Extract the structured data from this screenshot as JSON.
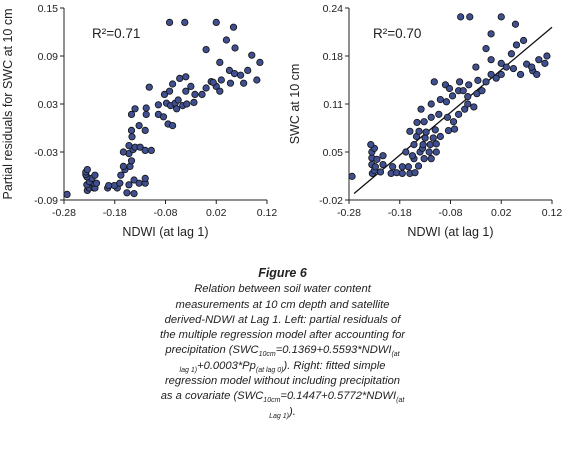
{
  "chart_data": [
    {
      "type": "scatter",
      "xlabel": "NDWI (at lag 1)",
      "ylabel": "Partial residuals for SWC at 10 cm",
      "annotation": "R²=0.71",
      "xlim": [
        -0.28,
        0.12
      ],
      "ylim": [
        -0.09,
        0.15
      ],
      "x_ticks": [
        "-0.28",
        "-0.18",
        "-0.08",
        "0.02",
        "0.12"
      ],
      "y_ticks": [
        "-0.09",
        "-0.03",
        "0.03",
        "0.09",
        "0.15"
      ],
      "grid": false,
      "fit_line": null,
      "points": [
        [
          -0.274,
          -0.083
        ],
        [
          -0.234,
          -0.078
        ],
        [
          -0.23,
          -0.075
        ],
        [
          -0.221,
          -0.075
        ],
        [
          -0.219,
          -0.075
        ],
        [
          -0.235,
          -0.071
        ],
        [
          -0.221,
          -0.069
        ],
        [
          -0.216,
          -0.069
        ],
        [
          -0.23,
          -0.067
        ],
        [
          -0.225,
          -0.063
        ],
        [
          -0.235,
          -0.061
        ],
        [
          -0.237,
          -0.058
        ],
        [
          -0.219,
          -0.059
        ],
        [
          -0.237,
          -0.055
        ],
        [
          -0.234,
          -0.052
        ],
        [
          -0.194,
          -0.075
        ],
        [
          -0.175,
          -0.075
        ],
        [
          -0.181,
          -0.072
        ],
        [
          -0.156,
          -0.081
        ],
        [
          -0.142,
          -0.082
        ],
        [
          -0.192,
          -0.072
        ],
        [
          -0.17,
          -0.069
        ],
        [
          -0.152,
          -0.071
        ],
        [
          -0.132,
          -0.069
        ],
        [
          -0.12,
          -0.069
        ],
        [
          -0.168,
          -0.059
        ],
        [
          -0.142,
          -0.065
        ],
        [
          -0.12,
          -0.063
        ],
        [
          -0.16,
          -0.052
        ],
        [
          -0.163,
          -0.048
        ],
        [
          -0.15,
          -0.048
        ],
        [
          -0.147,
          -0.041
        ],
        [
          -0.152,
          -0.032
        ],
        [
          -0.144,
          -0.027
        ],
        [
          -0.152,
          -0.022
        ],
        [
          -0.14,
          -0.024
        ],
        [
          -0.163,
          -0.03
        ],
        [
          -0.13,
          -0.024
        ],
        [
          -0.12,
          -0.028
        ],
        [
          -0.108,
          -0.028
        ],
        [
          -0.146,
          -0.011
        ],
        [
          -0.147,
          -0.003
        ],
        [
          -0.12,
          -0.003
        ],
        [
          -0.132,
          0.003
        ],
        [
          -0.147,
          0.017
        ],
        [
          -0.118,
          0.017
        ],
        [
          -0.094,
          0.017
        ],
        [
          -0.084,
          0.014
        ],
        [
          -0.075,
          0.005
        ],
        [
          -0.066,
          0.003
        ],
        [
          -0.14,
          0.024
        ],
        [
          -0.118,
          0.025
        ],
        [
          -0.094,
          0.029
        ],
        [
          -0.078,
          0.031
        ],
        [
          -0.07,
          0.028
        ],
        [
          -0.061,
          0.031
        ],
        [
          -0.058,
          0.024
        ],
        [
          -0.046,
          0.028
        ],
        [
          -0.038,
          0.03
        ],
        [
          -0.024,
          0.032
        ],
        [
          -0.112,
          0.051
        ],
        [
          -0.082,
          0.042
        ],
        [
          -0.072,
          0.046
        ],
        [
          -0.055,
          0.035
        ],
        [
          -0.04,
          0.046
        ],
        [
          -0.022,
          0.042
        ],
        [
          -0.008,
          0.042
        ],
        [
          -0.066,
          0.055
        ],
        [
          -0.052,
          0.062
        ],
        [
          -0.04,
          0.064
        ],
        [
          -0.03,
          0.052
        ],
        [
          0.0,
          0.05
        ],
        [
          0.01,
          0.058
        ],
        [
          0.02,
          0.052
        ],
        [
          0.027,
          0.046
        ],
        [
          0.03,
          0.06
        ],
        [
          0.046,
          0.072
        ],
        [
          0.056,
          0.068
        ],
        [
          0.068,
          0.066
        ],
        [
          0.082,
          0.072
        ],
        [
          0.106,
          0.082
        ],
        [
          0.074,
          0.056
        ],
        [
          0.048,
          0.056
        ],
        [
          0.014,
          0.057
        ],
        [
          0.027,
          0.082
        ],
        [
          0.04,
          0.11
        ],
        [
          0.054,
          0.126
        ],
        [
          0.057,
          0.1
        ],
        [
          0.09,
          0.091
        ],
        [
          0.1,
          0.06
        ],
        [
          -0.072,
          0.132
        ],
        [
          -0.042,
          0.132
        ],
        [
          0.02,
          0.132
        ],
        [
          0.0,
          0.098
        ]
      ]
    },
    {
      "type": "scatter",
      "xlabel": "NDWI (at lag 1)",
      "ylabel": "SWC at 10 cm",
      "annotation": "R²=0.70",
      "xlim": [
        -0.28,
        0.12
      ],
      "ylim": [
        -0.02,
        0.24
      ],
      "x_ticks": [
        "-0.28",
        "-0.18",
        "-0.08",
        "0.02",
        "0.12"
      ],
      "y_ticks": [
        "-0.02",
        "0.05",
        "0.11",
        "0.18",
        "0.24"
      ],
      "grid": false,
      "fit_line": {
        "intercept": 0.1447,
        "slope": 0.5772,
        "x_start": -0.27,
        "x_end": 0.12
      },
      "points": [
        [
          -0.274,
          0.012
        ],
        [
          -0.234,
          0.016
        ],
        [
          -0.23,
          0.02
        ],
        [
          -0.218,
          0.018
        ],
        [
          -0.235,
          0.028
        ],
        [
          -0.228,
          0.025
        ],
        [
          -0.213,
          0.028
        ],
        [
          -0.235,
          0.037
        ],
        [
          -0.225,
          0.035
        ],
        [
          -0.213,
          0.04
        ],
        [
          -0.235,
          0.045
        ],
        [
          -0.23,
          0.05
        ],
        [
          -0.237,
          0.055
        ],
        [
          -0.197,
          0.016
        ],
        [
          -0.186,
          0.017
        ],
        [
          -0.175,
          0.016
        ],
        [
          -0.16,
          0.016
        ],
        [
          -0.15,
          0.017
        ],
        [
          -0.194,
          0.025
        ],
        [
          -0.175,
          0.025
        ],
        [
          -0.163,
          0.025
        ],
        [
          -0.143,
          0.026
        ],
        [
          -0.152,
          0.036
        ],
        [
          -0.132,
          0.036
        ],
        [
          -0.118,
          0.036
        ],
        [
          -0.168,
          0.045
        ],
        [
          -0.155,
          0.04
        ],
        [
          -0.14,
          0.045
        ],
        [
          -0.135,
          0.05
        ],
        [
          -0.122,
          0.045
        ],
        [
          -0.108,
          0.045
        ],
        [
          -0.152,
          0.055
        ],
        [
          -0.134,
          0.055
        ],
        [
          -0.12,
          0.055
        ],
        [
          -0.108,
          0.056
        ],
        [
          -0.147,
          0.066
        ],
        [
          -0.13,
          0.064
        ],
        [
          -0.114,
          0.064
        ],
        [
          -0.1,
          0.066
        ],
        [
          -0.16,
          0.073
        ],
        [
          -0.142,
          0.073
        ],
        [
          -0.128,
          0.072
        ],
        [
          -0.11,
          0.075
        ],
        [
          -0.084,
          0.074
        ],
        [
          -0.072,
          0.076
        ],
        [
          -0.146,
          0.085
        ],
        [
          -0.132,
          0.086
        ],
        [
          -0.118,
          0.092
        ],
        [
          -0.103,
          0.096
        ],
        [
          -0.086,
          0.092
        ],
        [
          -0.074,
          0.086
        ],
        [
          -0.064,
          0.096
        ],
        [
          -0.052,
          0.103
        ],
        [
          -0.046,
          0.11
        ],
        [
          -0.034,
          0.106
        ],
        [
          -0.138,
          0.103
        ],
        [
          -0.118,
          0.11
        ],
        [
          -0.1,
          0.116
        ],
        [
          -0.088,
          0.113
        ],
        [
          -0.076,
          0.121
        ],
        [
          -0.064,
          0.128
        ],
        [
          -0.055,
          0.128
        ],
        [
          -0.046,
          0.12
        ],
        [
          -0.028,
          0.124
        ],
        [
          -0.018,
          0.128
        ],
        [
          -0.112,
          0.14
        ],
        [
          -0.09,
          0.136
        ],
        [
          -0.082,
          0.131
        ],
        [
          -0.062,
          0.14
        ],
        [
          -0.044,
          0.136
        ],
        [
          -0.026,
          0.142
        ],
        [
          -0.01,
          0.14
        ],
        [
          0.0,
          0.15
        ],
        [
          0.01,
          0.145
        ],
        [
          0.02,
          0.15
        ],
        [
          -0.03,
          0.16
        ],
        [
          0.0,
          0.17
        ],
        [
          0.02,
          0.165
        ],
        [
          0.03,
          0.16
        ],
        [
          0.044,
          0.158
        ],
        [
          0.058,
          0.15
        ],
        [
          0.07,
          0.164
        ],
        [
          0.082,
          0.155
        ],
        [
          0.094,
          0.17
        ],
        [
          0.106,
          0.165
        ],
        [
          0.04,
          0.178
        ],
        [
          0.05,
          0.19
        ],
        [
          0.064,
          0.196
        ],
        [
          0.08,
          0.16
        ],
        [
          0.09,
          0.15
        ],
        [
          -0.06,
          0.228
        ],
        [
          -0.042,
          0.228
        ],
        [
          0.02,
          0.228
        ],
        [
          0.0,
          0.205
        ],
        [
          0.048,
          0.218
        ],
        [
          -0.01,
          0.185
        ],
        [
          0.11,
          0.175
        ]
      ]
    }
  ],
  "caption": {
    "figure_label": "Figure 6",
    "text_1": "Relation between soil water content measurements at 10 cm depth and satellite derived-NDWI at Lag 1. Left: partial residuals of the multiple regression model after accounting for precipitation (SWC",
    "sub_1": "10cm",
    "text_2": "=0.1369+0.5593*NDWI",
    "sub_2": "(at lag 1)",
    "text_3": "+0.0003*Pp",
    "sub_3": "(at lag 0)",
    "text_4": "). Right: fitted simple regression model without including precipitation as a covariate (SWC",
    "sub_4": "10cm",
    "text_5": "=0.1447+0.5772*NDWI",
    "sub_5": "(at Lag 1)",
    "text_6": ")."
  }
}
